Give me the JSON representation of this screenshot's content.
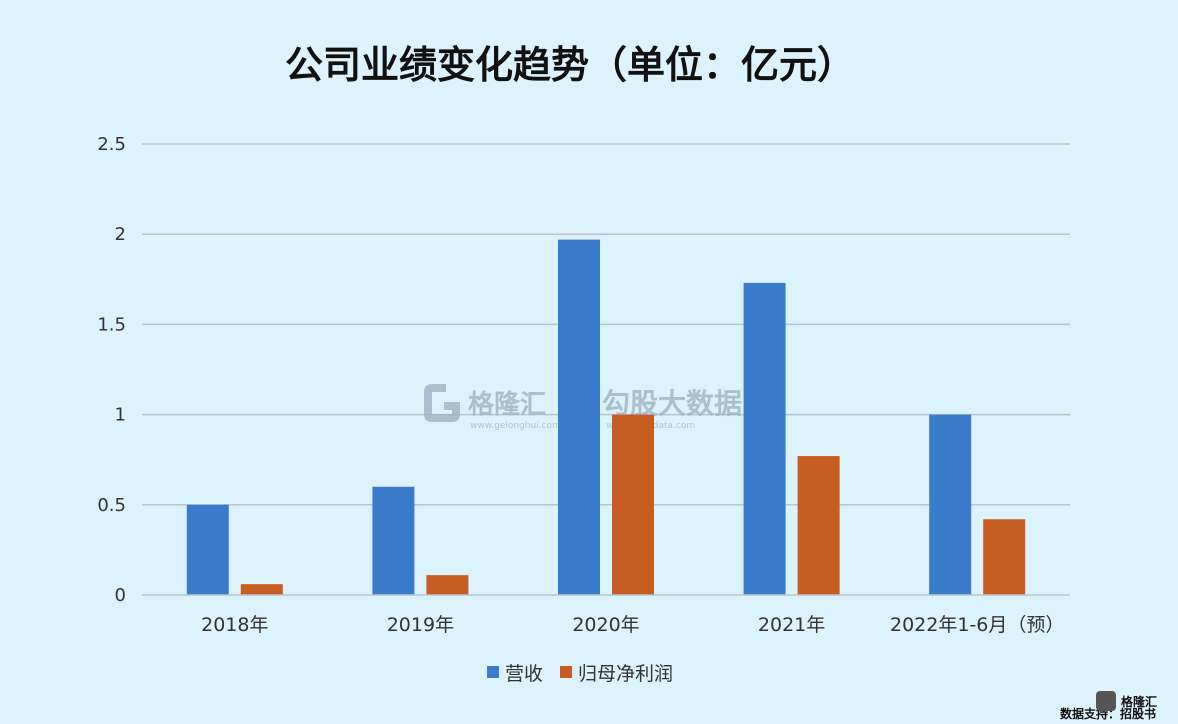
{
  "chart_data": {
    "type": "bar",
    "title": "公司业绩变化趋势（单位：亿元）",
    "categories": [
      "2018年",
      "2019年",
      "2020年",
      "2021年",
      "2022年1-6月（预）"
    ],
    "series": [
      {
        "name": "营收",
        "values": [
          0.5,
          0.6,
          1.97,
          1.73,
          1.0
        ],
        "color": "#3a7bcc"
      },
      {
        "name": "归母净利润",
        "values": [
          0.06,
          0.11,
          1.0,
          0.77,
          0.42
        ],
        "color": "#c65d23"
      }
    ],
    "ylim": [
      0,
      2.5
    ],
    "yticks": [
      "0",
      "0.5",
      "1",
      "1.5",
      "2",
      "2.5"
    ],
    "ytick_values": [
      0,
      0.5,
      1,
      1.5,
      2,
      2.5
    ],
    "grid": true,
    "legend": "bottom-center"
  },
  "watermark": {
    "logo_text": "格隆汇",
    "logo_url": "www.gelonghui.com",
    "brand_text": "勾股大数据",
    "brand_url": "www.gogudata.com",
    "corner_logo": "格隆汇"
  },
  "footer": {
    "source": "数据支持：招股书"
  }
}
